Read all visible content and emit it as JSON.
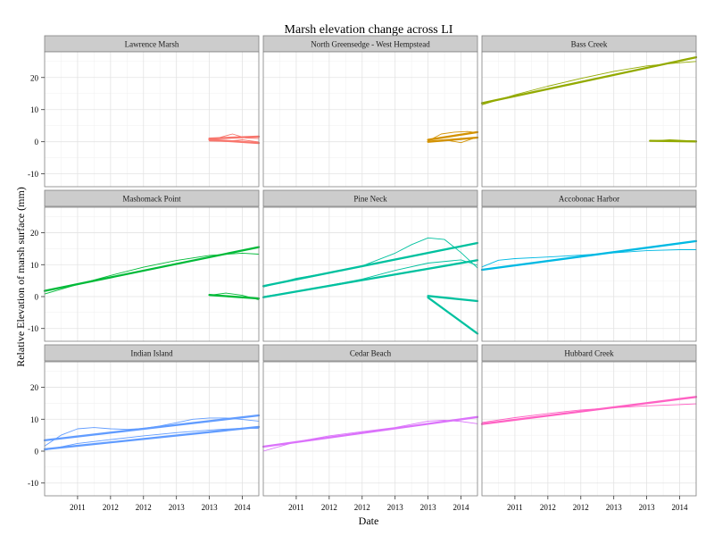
{
  "chart_data": {
    "type": "line",
    "title": "Marsh elevation change across LI",
    "xlabel": "Date",
    "ylabel": "Relative Elevation of marsh surface (mm)",
    "x_tick_labels": [
      "2011",
      "2012",
      "2012",
      "2013",
      "2013",
      "2014"
    ],
    "x_tick_positions": [
      2010.75,
      2011.25,
      2011.75,
      2012.25,
      2012.75,
      2013.25
    ],
    "xlim": [
      2010.25,
      2013.5
    ],
    "y_ticks": [
      -10,
      0,
      10,
      20
    ],
    "ylim": [
      -14,
      28
    ],
    "grid": true,
    "legend": "none",
    "panels": [
      {
        "name": "Lawrence Marsh",
        "color": "#F8766D",
        "series": [
          {
            "style": "thick",
            "x": [
              2012.75,
              2013.5
            ],
            "y": [
              1.0,
              1.6
            ]
          },
          {
            "style": "thick",
            "x": [
              2012.75,
              2013.5
            ],
            "y": [
              0.6,
              -0.4
            ]
          },
          {
            "style": "thin",
            "x": [
              2012.75,
              2012.9,
              2013.1,
              2013.3,
              2013.5
            ],
            "y": [
              0.3,
              1.3,
              2.4,
              1.2,
              1.0
            ]
          },
          {
            "style": "thin",
            "x": [
              2012.75,
              2013.0,
              2013.25,
              2013.5
            ],
            "y": [
              0.2,
              0.1,
              0.6,
              -0.1
            ]
          }
        ]
      },
      {
        "name": "North Greensedge - West Hempstead",
        "color": "#D39200",
        "series": [
          {
            "style": "thick",
            "x": [
              2012.75,
              2013.5
            ],
            "y": [
              0.6,
              3.0
            ]
          },
          {
            "style": "thick",
            "x": [
              2012.75,
              2013.5
            ],
            "y": [
              0.0,
              1.3
            ]
          },
          {
            "style": "thin",
            "x": [
              2012.75,
              2012.95,
              2013.15,
              2013.35,
              2013.5
            ],
            "y": [
              0.2,
              2.4,
              3.0,
              3.2,
              2.8
            ]
          },
          {
            "style": "thin",
            "x": [
              2012.75,
              2013.0,
              2013.25,
              2013.5
            ],
            "y": [
              0.0,
              0.6,
              -0.3,
              1.5
            ]
          }
        ]
      },
      {
        "name": "Bass Creek",
        "color": "#93AA00",
        "series": [
          {
            "style": "thick",
            "x": [
              2010.25,
              2013.5
            ],
            "y": [
              12.0,
              26.3
            ]
          },
          {
            "style": "thin",
            "x": [
              2010.25,
              2010.75,
              2011.25,
              2011.75,
              2012.25,
              2012.75,
              2013.25,
              2013.5
            ],
            "y": [
              11.5,
              14.6,
              17.3,
              19.7,
              21.9,
              23.6,
              24.6,
              25.0
            ]
          },
          {
            "style": "thick",
            "x": [
              2012.8,
              2013.5
            ],
            "y": [
              0.3,
              0.1
            ]
          },
          {
            "style": "thin",
            "x": [
              2012.8,
              2013.1,
              2013.5
            ],
            "y": [
              0.2,
              0.6,
              0.2
            ]
          }
        ]
      },
      {
        "name": "Mashomack Point",
        "color": "#00BA38",
        "series": [
          {
            "style": "thick",
            "x": [
              2010.25,
              2013.5
            ],
            "y": [
              1.8,
              15.5
            ]
          },
          {
            "style": "thin",
            "x": [
              2010.25,
              2010.75,
              2011.25,
              2011.75,
              2012.25,
              2012.75,
              2013.25,
              2013.5
            ],
            "y": [
              0.8,
              3.8,
              6.6,
              9.2,
              11.3,
              12.9,
              13.6,
              13.3
            ]
          },
          {
            "style": "thick",
            "x": [
              2012.75,
              2013.5
            ],
            "y": [
              0.5,
              -0.6
            ]
          },
          {
            "style": "thin",
            "x": [
              2012.75,
              2013.0,
              2013.25,
              2013.5
            ],
            "y": [
              0.4,
              1.1,
              0.4,
              -1.0
            ]
          }
        ]
      },
      {
        "name": "Pine Neck",
        "color": "#00C19F",
        "series": [
          {
            "style": "thick",
            "x": [
              2010.25,
              2013.5
            ],
            "y": [
              3.3,
              16.8
            ]
          },
          {
            "style": "thick",
            "x": [
              2010.25,
              2013.5
            ],
            "y": [
              -0.2,
              11.4
            ]
          },
          {
            "style": "thin",
            "x": [
              2010.25,
              2010.75,
              2011.25,
              2011.75,
              2012.25,
              2012.5,
              2012.75,
              2013.0,
              2013.25,
              2013.5
            ],
            "y": [
              3.0,
              5.7,
              7.5,
              9.6,
              13.6,
              16.3,
              18.4,
              17.9,
              13.8,
              9.0
            ]
          },
          {
            "style": "thin",
            "x": [
              2010.25,
              2010.75,
              2011.25,
              2011.75,
              2012.25,
              2012.75,
              2013.25,
              2013.5
            ],
            "y": [
              0.0,
              1.6,
              3.5,
              5.5,
              8.2,
              10.5,
              11.5,
              9.8
            ]
          },
          {
            "style": "thick",
            "x": [
              2012.75,
              2013.5
            ],
            "y": [
              0.2,
              -1.4
            ]
          },
          {
            "style": "thick",
            "x": [
              2012.75,
              2013.5
            ],
            "y": [
              -0.3,
              -11.6
            ]
          }
        ]
      },
      {
        "name": "Accobonac Harbor",
        "color": "#00B9E3",
        "series": [
          {
            "style": "thick",
            "x": [
              2010.25,
              2013.5
            ],
            "y": [
              8.4,
              17.4
            ]
          },
          {
            "style": "thin",
            "x": [
              2010.25,
              2010.5,
              2010.75,
              2011.25,
              2011.75,
              2012.25,
              2012.75,
              2013.25,
              2013.5
            ],
            "y": [
              9.3,
              11.4,
              11.9,
              12.4,
              13.0,
              13.7,
              14.4,
              14.7,
              14.7
            ]
          }
        ]
      },
      {
        "name": "Indian Island",
        "color": "#619CFF",
        "series": [
          {
            "style": "thick",
            "x": [
              2010.25,
              2013.5
            ],
            "y": [
              3.4,
              11.2
            ]
          },
          {
            "style": "thick",
            "x": [
              2010.25,
              2013.5
            ],
            "y": [
              0.6,
              7.6
            ]
          },
          {
            "style": "thin",
            "x": [
              2010.25,
              2010.5,
              2010.75,
              2011.0,
              2011.25,
              2011.5,
              2011.75,
              2012.0,
              2012.25,
              2012.5,
              2012.75,
              2013.0,
              2013.25,
              2013.5
            ],
            "y": [
              1.6,
              5.0,
              7.0,
              7.4,
              7.0,
              6.8,
              7.1,
              7.9,
              8.9,
              10.0,
              10.4,
              10.4,
              9.9,
              9.4
            ]
          },
          {
            "style": "thin",
            "x": [
              2010.25,
              2010.75,
              2011.25,
              2011.75,
              2012.25,
              2012.75,
              2013.25,
              2013.5
            ],
            "y": [
              0.3,
              2.4,
              3.6,
              4.8,
              5.8,
              6.6,
              7.2,
              7.1
            ]
          }
        ]
      },
      {
        "name": "Cedar Beach",
        "color": "#DB72FB",
        "series": [
          {
            "style": "thick",
            "x": [
              2010.25,
              2013.5
            ],
            "y": [
              1.4,
              10.7
            ]
          },
          {
            "style": "thin",
            "x": [
              2010.25,
              2010.75,
              2011.25,
              2011.75,
              2012.25,
              2012.75,
              2013.0,
              2013.25,
              2013.5
            ],
            "y": [
              0.0,
              2.9,
              4.8,
              6.1,
              7.4,
              9.4,
              9.7,
              9.3,
              8.6
            ]
          }
        ]
      },
      {
        "name": "Hubbard Creek",
        "color": "#FF61C3",
        "series": [
          {
            "style": "thick",
            "x": [
              2010.25,
              2013.5
            ],
            "y": [
              8.5,
              17.0
            ]
          },
          {
            "style": "thin",
            "x": [
              2010.25,
              2010.75,
              2011.25,
              2011.75,
              2012.25,
              2012.75,
              2013.25,
              2013.5
            ],
            "y": [
              9.0,
              10.5,
              11.8,
              12.9,
              13.6,
              14.2,
              14.6,
              14.8
            ]
          }
        ]
      }
    ]
  }
}
